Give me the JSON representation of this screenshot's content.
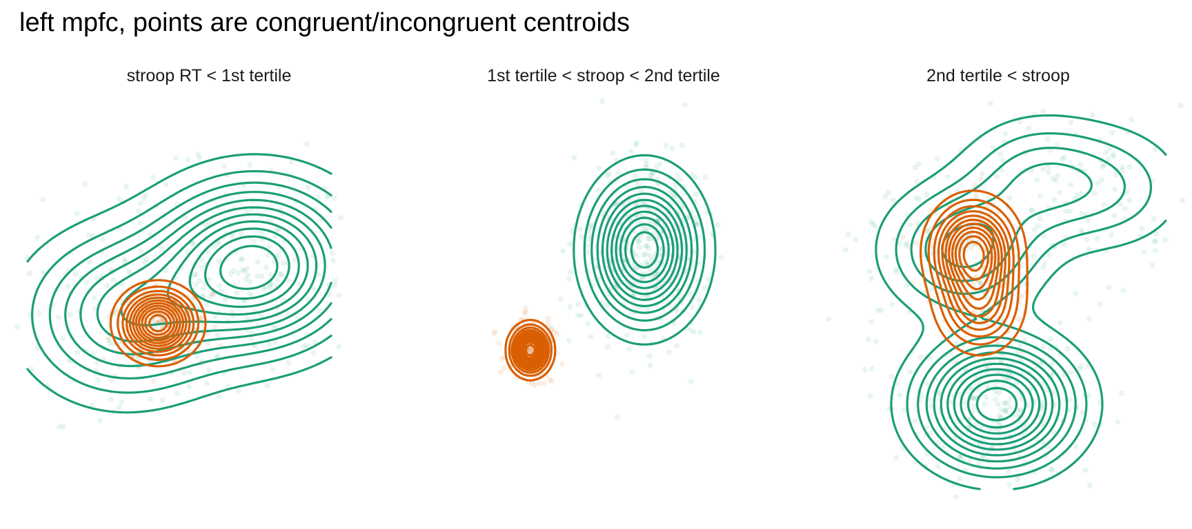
{
  "title": "left mpfc, points are congruent/incongruent centroids",
  "colors": {
    "congruent": "#1b9e77",
    "incongruent": "#d95f02",
    "background": "#ffffff"
  },
  "chart_data": {
    "type": "scatter",
    "title": "left mpfc, points are congruent/incongruent centroids",
    "layers": [
      "points",
      "density-contours"
    ],
    "axes_visible": false,
    "grid": false,
    "legend": "none",
    "series": [
      {
        "key": "congruent"
      },
      {
        "key": "incongruent"
      }
    ],
    "panels": [
      {
        "title": "stroop RT < 1st tertile",
        "congruent": {
          "modes": [
            {
              "x": 0.75,
              "y": 0.58,
              "w": 1.0
            },
            {
              "x": 0.32,
              "y": 0.45,
              "w": 0.55
            }
          ],
          "spread_x": 0.2,
          "spread_y": 0.13
        },
        "incongruent": {
          "modes": [
            {
              "x": 0.43,
              "y": 0.43,
              "w": 1.0
            }
          ],
          "spread_x": 0.07,
          "spread_y": 0.05
        }
      },
      {
        "title": "1st tertile < stroop < 2nd tertile",
        "congruent": {
          "modes": [
            {
              "x": 0.64,
              "y": 0.62,
              "w": 1.0
            }
          ],
          "spread_x": 0.1,
          "spread_y": 0.11
        },
        "incongruent": {
          "modes": [
            {
              "x": 0.28,
              "y": 0.36,
              "w": 1.0
            }
          ],
          "spread_x": 0.035,
          "spread_y": 0.035
        }
      },
      {
        "title": "2nd tertile < stroop",
        "congruent": {
          "modes": [
            {
              "x": 0.5,
              "y": 0.22,
              "w": 1.0
            },
            {
              "x": 0.4,
              "y": 0.62,
              "w": 0.45
            },
            {
              "x": 0.62,
              "y": 0.8,
              "w": 0.3
            },
            {
              "x": 0.85,
              "y": 0.78,
              "w": 0.2
            }
          ],
          "spread_x": 0.14,
          "spread_y": 0.1
        },
        "incongruent": {
          "modes": [
            {
              "x": 0.43,
              "y": 0.62,
              "w": 1.0
            },
            {
              "x": 0.45,
              "y": 0.48,
              "w": 0.55
            }
          ],
          "spread_x": 0.07,
          "spread_y": 0.07
        }
      }
    ]
  }
}
